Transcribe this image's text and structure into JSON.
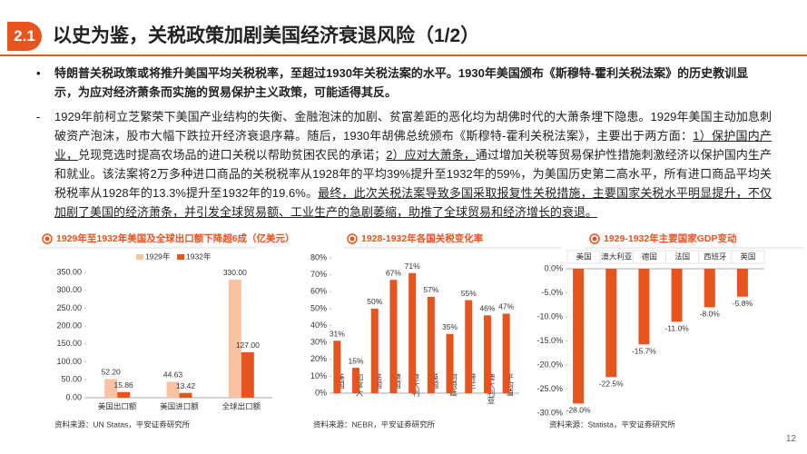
{
  "header": {
    "badge": "2.1",
    "title": "以史为鉴，关税政策加剧美国经济衰退风险（1/2）"
  },
  "bullet": "特朗普关税政策或将推升美国平均关税税率，至超过1930年关税法案的水平。1930年美国颁布《斯穆特-霍利关税法案》的历史教训显示，为应对经济萧条而实施的贸易保护主义政策，可能适得其反。",
  "paragraph": [
    {
      "text": "1929年前柯立芝繁荣下美国产业结构的失衡、金融泡沫的加剧、贫富差距的恶化均为胡佛时代的大萧条埋下隐患。1929年美国主动加息刺破资产泡沫，股市大幅下跌拉开经济衰退序幕。随后，1930年胡佛总统颁布《斯穆特-霍利关税法案》，主要出于两方面：",
      "underline": false
    },
    {
      "text": "1）保护国内产业，",
      "underline": true
    },
    {
      "text": "兑现竞选时提高农场品的进口关税以帮助贫困农民的承诺；",
      "underline": false
    },
    {
      "text": "2）应对大萧条，",
      "underline": true
    },
    {
      "text": "通过增加关税等贸易保护性措施刺激经济以保护国内生产和就业。该法案将2万多种进口商品的关税税率从1928年的平均39%提升至1932年的59%，为美国历史第二高水平，所有进口商品平均关税税率从1928年的13.3%提升至1932年的19.6%。",
      "underline": false
    },
    {
      "text": "最终，此次关税法案导致多国采取报复性关税措施，主要国家关税水平明显提升，不仅加剧了美国的经济萧条，并引发全球贸易额、工业生产的急剧萎缩，助推了全球贸易和经济增长的衰退。",
      "underline": true
    }
  ],
  "chart_data": [
    {
      "type": "bar",
      "title": "1929年至1932年美国及全球出口额下降超6成（亿美元）",
      "categories": [
        "美国出口额",
        "美国进口额",
        "全球出口额"
      ],
      "series": [
        {
          "name": "1929年",
          "color": "#f8c3a3",
          "values": [
            52.2,
            44.63,
            330
          ],
          "value_labels": [
            "52.20",
            "44.63",
            "330.00"
          ]
        },
        {
          "name": "1932年",
          "color": "#e8541e",
          "values": [
            15.86,
            13.42,
            127
          ],
          "value_labels": [
            "15.86",
            "13.42",
            "127.00"
          ]
        }
      ],
      "ylim": [
        0,
        350
      ],
      "yticks": [
        {
          "value": 0,
          "label": "0.00"
        },
        {
          "value": 50,
          "label": "50.00"
        },
        {
          "value": 100,
          "label": "100.00"
        },
        {
          "value": 150,
          "label": "150.00"
        },
        {
          "value": 200,
          "label": "200.00"
        },
        {
          "value": 250,
          "label": "250.00"
        },
        {
          "value": 300,
          "label": "300.00"
        },
        {
          "value": 350,
          "label": "350.00"
        }
      ],
      "legend": "top",
      "source": "资料来源：UN Statas，平安证券研究所"
    },
    {
      "type": "bar",
      "title": "1928-1932年各国关税变化率",
      "categories": [
        "美国",
        "加拿大",
        "法国",
        "德国",
        "意大利",
        "英国",
        "阿根廷",
        "荷兰",
        "澳大利亚",
        "平均值"
      ],
      "values": [
        31,
        15,
        50,
        67,
        71,
        57,
        35,
        55,
        46,
        47
      ],
      "value_labels": [
        "31%",
        "15%",
        "50%",
        "67%",
        "71%",
        "57%",
        "35%",
        "55%",
        "46%",
        "47%"
      ],
      "color": "#e8541e",
      "ylim": [
        0,
        80
      ],
      "yticks": [
        {
          "value": 0,
          "label": "0%"
        },
        {
          "value": 10,
          "label": "10%"
        },
        {
          "value": 20,
          "label": "20%"
        },
        {
          "value": 30,
          "label": "30%"
        },
        {
          "value": 40,
          "label": "40%"
        },
        {
          "value": 50,
          "label": "50%"
        },
        {
          "value": 60,
          "label": "60%"
        },
        {
          "value": 70,
          "label": "70%"
        },
        {
          "value": 80,
          "label": "80%"
        }
      ],
      "source": "资料来源：NEBR，平安证券研究所"
    },
    {
      "type": "bar",
      "title": "1929-1932年主要国家GDP变动",
      "categories": [
        "美国",
        "澳大利亚",
        "德国",
        "法国",
        "西班牙",
        "英国"
      ],
      "values": [
        -28,
        -22.5,
        -15.7,
        -11,
        -8,
        -5.8
      ],
      "value_labels": [
        "-28.0%",
        "-22.5%",
        "-15.7%",
        "-11.0%",
        "-8.0%",
        "-5.8%"
      ],
      "color": "#e8541e",
      "ylim": [
        -30,
        0
      ],
      "yticks": [
        {
          "value": 0,
          "label": "0.0%"
        },
        {
          "value": -5,
          "label": "-5.0%"
        },
        {
          "value": -10,
          "label": "-10.0%"
        },
        {
          "value": -15,
          "label": "-15.0%"
        },
        {
          "value": -20,
          "label": "-20.0%"
        },
        {
          "value": -25,
          "label": "-25.0%"
        },
        {
          "value": -30,
          "label": "-30.0%"
        }
      ],
      "source": "资料来源：Statista，平安证券研究所"
    }
  ],
  "page_number": "12"
}
